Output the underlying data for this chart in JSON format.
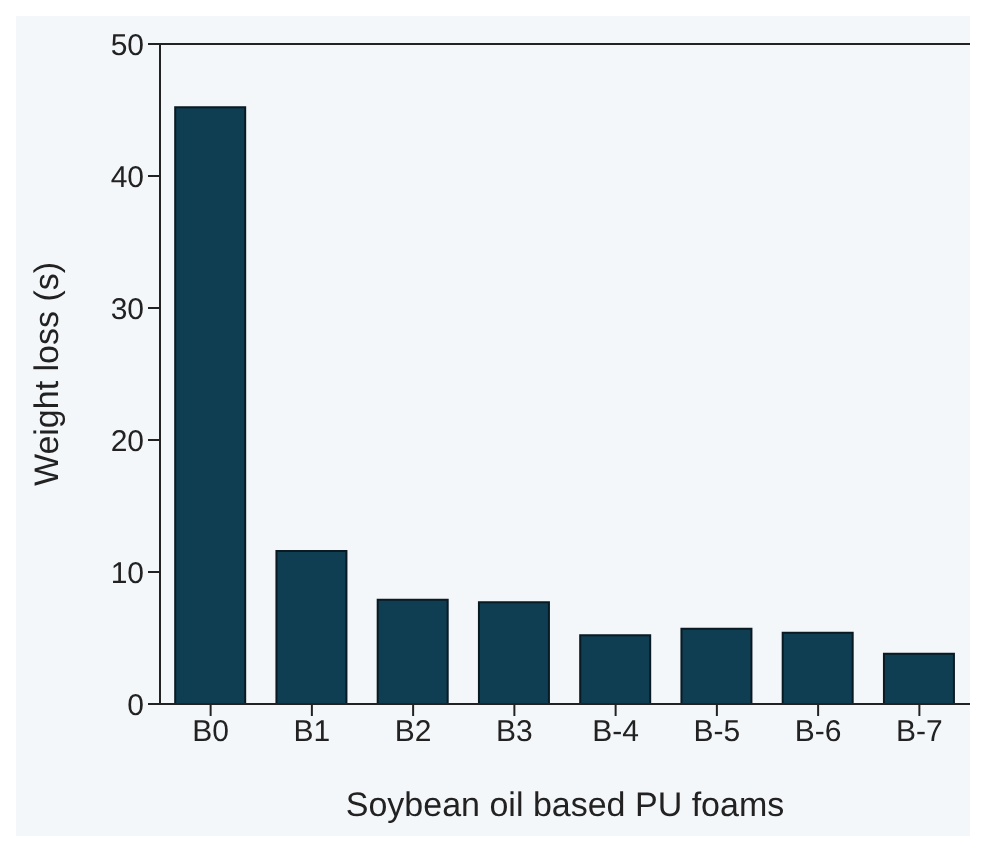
{
  "chart_data": {
    "type": "bar",
    "xlabel": "Soybean oil based PU foams",
    "ylabel": "Weight loss (s)",
    "categories": [
      "B0",
      "B1",
      "B2",
      "B3",
      "B-4",
      "B-5",
      "B-6",
      "B-7"
    ],
    "values": [
      45.2,
      11.6,
      7.9,
      7.7,
      5.2,
      5.7,
      5.4,
      3.8
    ],
    "color": "#0f3d52",
    "ylim": [
      0,
      50
    ],
    "yticks": [
      0,
      10,
      20,
      30,
      40,
      50
    ],
    "grid": false,
    "legend": false
  }
}
